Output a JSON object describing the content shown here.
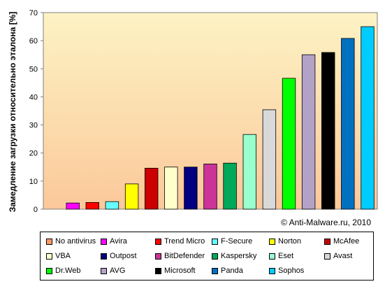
{
  "chart_data": {
    "type": "bar",
    "ylabel": "Замедление загрузки относительно эталона [%]",
    "ylim": [
      0,
      70
    ],
    "yticks": [
      0,
      10,
      20,
      30,
      40,
      50,
      60,
      70
    ],
    "grid": false,
    "legend_position": "bottom",
    "background_gradient": [
      "#fdf3c4",
      "#fbc89a"
    ],
    "annotation": "© Anti-Malware.ru,  2010",
    "categories": [
      "No antivirus",
      "Avira",
      "Trend Micro",
      "F-Secure",
      "Norton",
      "McAfee",
      "VBA",
      "Outpost",
      "BitDefender",
      "Kaspersky",
      "Eset",
      "Avast",
      "Dr.Web",
      "AVG",
      "Microsoft",
      "Panda",
      "Sophos"
    ],
    "values": [
      null,
      2.2,
      2.4,
      2.7,
      9,
      14.6,
      15,
      15,
      16.1,
      16.4,
      26.6,
      35.4,
      46.6,
      55,
      55.8,
      60.8,
      65
    ],
    "colors": [
      "#ff9966",
      "#ff00ff",
      "#ff0000",
      "#66ffff",
      "#ffff00",
      "#cc0000",
      "#ffffcc",
      "#000080",
      "#cc3399",
      "#00a859",
      "#99ffcc",
      "#d9d9d9",
      "#00ff00",
      "#b3a2c7",
      "#000000",
      "#0070c0",
      "#00ccff"
    ]
  }
}
